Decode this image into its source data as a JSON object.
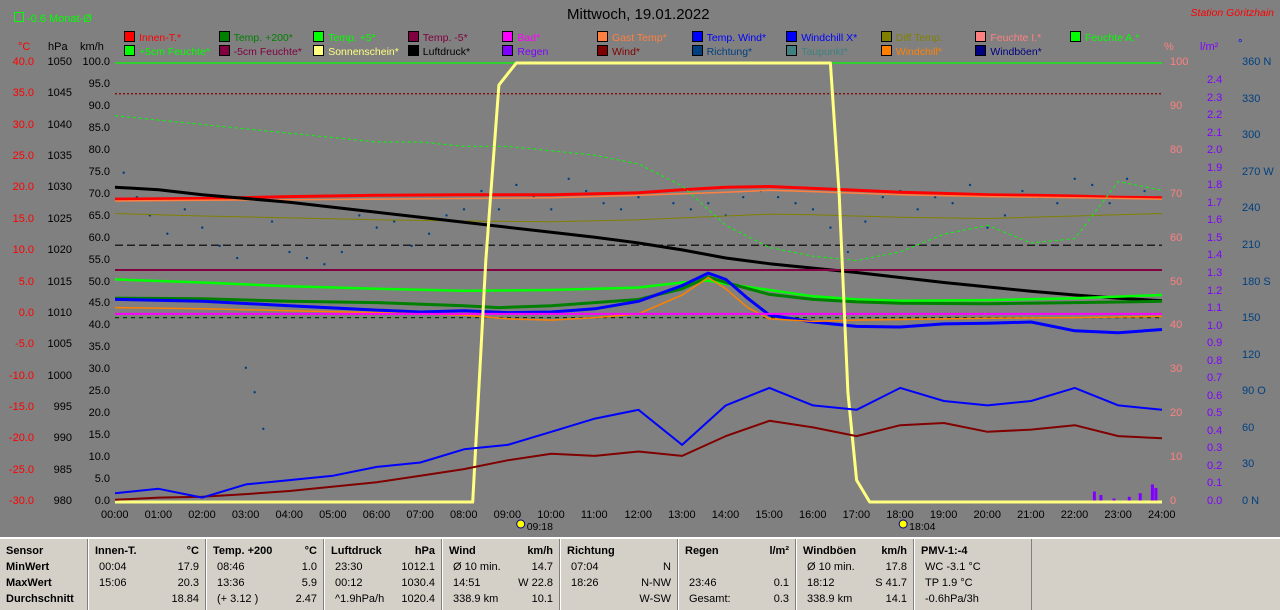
{
  "header": {
    "monat_badge": "-0.6 Monat-Ø",
    "title": "Mittwoch, 19.01.2022",
    "station": "Station Göritzhain"
  },
  "axes": {
    "left_temp": {
      "unit": "°C",
      "ticks": [
        "40.0",
        "35.0",
        "30.0",
        "25.0",
        "20.0",
        "15.0",
        "10.0",
        "5.0",
        "0.0",
        "-5.0",
        "-10.0",
        "-15.0",
        "-20.0",
        "-25.0",
        "-30.0"
      ]
    },
    "left_hpa": {
      "unit": "hPa",
      "ticks": [
        "1050",
        "1045",
        "1040",
        "1035",
        "1030",
        "1025",
        "1020",
        "1015",
        "1010",
        "1005",
        "1000",
        "995",
        "990",
        "985",
        "980"
      ]
    },
    "left_kmh": {
      "unit": "km/h",
      "ticks": [
        "100.0",
        "95.0",
        "90.0",
        "85.0",
        "80.0",
        "75.0",
        "70.0",
        "65.0",
        "60.0",
        "55.0",
        "50.0",
        "45.0",
        "40.0",
        "35.0",
        "30.0",
        "25.0",
        "20.0",
        "15.0",
        "10.0",
        "5.0",
        "0.0"
      ]
    },
    "right_pct": {
      "unit": "%",
      "ticks": [
        "100",
        "90",
        "80",
        "70",
        "60",
        "50",
        "40",
        "30",
        "20",
        "10",
        "0"
      ]
    },
    "right_rain": {
      "unit": "l/m²",
      "ticks": [
        "2.4",
        "2.3",
        "2.2",
        "2.1",
        "2.0",
        "1.9",
        "1.8",
        "1.7",
        "1.6",
        "1.5",
        "1.4",
        "1.3",
        "1.2",
        "1.1",
        "1.0",
        "0.9",
        "0.8",
        "0.7",
        "0.6",
        "0.5",
        "0.4",
        "0.3",
        "0.2",
        "0.1",
        "0.0"
      ]
    },
    "right_dir": {
      "unit": "°",
      "ticks": [
        "360 N",
        "330",
        "300",
        "270 W",
        "240",
        "210",
        "180 S",
        "150",
        "120",
        "90 O",
        "60",
        "30",
        "0 N"
      ]
    },
    "x_ticks": [
      "00:00",
      "01:00",
      "02:00",
      "03:00",
      "04:00",
      "05:00",
      "06:00",
      "07:00",
      "08:00",
      "09:00",
      "10:00",
      "11:00",
      "12:00",
      "13:00",
      "14:00",
      "15:00",
      "16:00",
      "17:00",
      "18:00",
      "19:00",
      "20:00",
      "21:00",
      "22:00",
      "23:00",
      "24:00"
    ],
    "sunrise": "09:18",
    "sunset": "18:04"
  },
  "legend": [
    {
      "label": "Innen-T.*",
      "color": "#ff0000"
    },
    {
      "label": "Temp. +200*",
      "color": "#008000"
    },
    {
      "label": "Temp. +5*",
      "color": "#00ff00"
    },
    {
      "label": "Temp. -5*",
      "color": "#800040"
    },
    {
      "label": "Bad*",
      "color": "#ff00ff"
    },
    {
      "label": "Gast Temp*",
      "color": "#ff8040"
    },
    {
      "label": "Temp. Wind*",
      "color": "#0000ff"
    },
    {
      "label": "Windchill X*",
      "color": "#0000ff"
    },
    {
      "label": "Diff Temp.",
      "color": "#808000"
    },
    {
      "label": "Feuchte I.*",
      "color": "#ff8080"
    },
    {
      "label": "Feuchte A.*",
      "color": "#00ff00"
    },
    {
      "label": "+5cm Feuchte*",
      "color": "#00ff00"
    },
    {
      "label": "-5cm Feuchte*",
      "color": "#800040"
    },
    {
      "label": "Sonnenschein*",
      "color": "#ffff80"
    },
    {
      "label": "Luftdruck*",
      "color": "#000000"
    },
    {
      "label": "Regen",
      "color": "#8000ff"
    },
    {
      "label": "Wind*",
      "color": "#800000"
    },
    {
      "label": "Richtung*",
      "color": "#004080"
    },
    {
      "label": "Taupunkt*",
      "color": "#408080"
    },
    {
      "label": "Windchill*",
      "color": "#ff8000"
    },
    {
      "label": "Windböen*",
      "color": "#000080"
    }
  ],
  "stats": {
    "row_labels": [
      "Sensor",
      "MinWert",
      "MaxWert",
      "Durchschnitt"
    ],
    "columns": [
      {
        "title": "Innen-T.",
        "unit": "°C",
        "rows": [
          [
            "00:04",
            "17.9"
          ],
          [
            "15:06",
            "20.3"
          ],
          [
            "",
            "18.84"
          ]
        ]
      },
      {
        "title": "Temp. +200",
        "unit": "°C",
        "rows": [
          [
            "08:46",
            "1.0"
          ],
          [
            "13:36",
            "5.9"
          ],
          [
            "(+ 3.12 )",
            "2.47"
          ]
        ]
      },
      {
        "title": "Luftdruck",
        "unit": "hPa",
        "rows": [
          [
            "23:30",
            "1012.1"
          ],
          [
            "00:12",
            "1030.4"
          ],
          [
            "^1.9hPa/h",
            "1020.4"
          ]
        ]
      },
      {
        "title": "Wind",
        "unit": "km/h",
        "rows": [
          [
            "Ø 10 min.",
            "14.7"
          ],
          [
            "14:51",
            "W 22.8"
          ],
          [
            "338.9 km",
            "10.1"
          ]
        ]
      },
      {
        "title": "Richtung",
        "unit": "",
        "rows": [
          [
            "07:04",
            "N"
          ],
          [
            "18:26",
            "N-NW"
          ],
          [
            "",
            "W-SW"
          ]
        ]
      },
      {
        "title": "Regen",
        "unit": "l/m²",
        "rows": [
          [
            "",
            ""
          ],
          [
            "23:46",
            "0.1"
          ],
          [
            "Gesamt:",
            "0.3"
          ]
        ]
      },
      {
        "title": "Windböen",
        "unit": "km/h",
        "rows": [
          [
            "Ø 10 min.",
            "17.8"
          ],
          [
            "18:12",
            "S 41.7"
          ],
          [
            "338.9 km",
            "14.1"
          ]
        ]
      },
      {
        "title": "PMV-1:-4",
        "unit": "",
        "rows": [
          [
            "WC -3.1 °C",
            ""
          ],
          [
            "TP 1.9 °C",
            ""
          ],
          [
            "-0.6hPa/3h",
            ""
          ]
        ]
      }
    ]
  },
  "chart_data": {
    "type": "line",
    "title": "Mittwoch, 19.01.2022",
    "x_unit": "hours",
    "xlim": [
      0,
      24
    ],
    "series": [
      {
        "name": "Innen-T.*",
        "axis": "°C",
        "color": "#ff0000",
        "width": 3,
        "x": [
          0,
          2,
          4,
          6,
          8,
          10,
          12,
          13,
          14,
          15,
          16,
          17,
          18,
          19,
          20,
          21,
          22,
          23,
          24
        ],
        "y": [
          18.3,
          18.4,
          18.7,
          18.9,
          19.0,
          19.0,
          19.3,
          19.8,
          20.2,
          20.3,
          20.0,
          19.7,
          19.4,
          19.2,
          19.0,
          18.9,
          18.8,
          18.6,
          18.5
        ]
      },
      {
        "name": "Gast Temp*",
        "axis": "°C",
        "color": "#ff8040",
        "width": 1.5,
        "x": [
          0,
          2,
          4,
          6,
          8,
          10,
          12,
          14,
          15,
          16,
          18,
          20,
          22,
          24
        ],
        "y": [
          18.0,
          18.1,
          18.2,
          18.3,
          18.4,
          18.5,
          18.9,
          19.4,
          19.7,
          19.5,
          19.0,
          18.7,
          18.5,
          18.3
        ]
      },
      {
        "name": "Diff Temp.",
        "axis": "°C",
        "color": "#808000",
        "width": 1,
        "x": [
          0,
          2,
          4,
          6,
          8,
          10,
          12,
          14,
          15,
          16,
          18,
          20,
          22,
          24
        ],
        "y": [
          16.0,
          15.6,
          15.3,
          15.0,
          14.8,
          14.7,
          15.0,
          15.6,
          15.9,
          15.8,
          15.4,
          15.2,
          15.6,
          16.0
        ]
      },
      {
        "name": "Luftdruck*",
        "axis": "hPa",
        "color": "#000000",
        "width": 3,
        "x": [
          0,
          1,
          2,
          3,
          4,
          5,
          6,
          7,
          8,
          9,
          10,
          11,
          12,
          13,
          14,
          15,
          16,
          17,
          18,
          19,
          20,
          21,
          22,
          23,
          24
        ],
        "y": [
          1030.2,
          1029.8,
          1029.0,
          1028.4,
          1027.8,
          1027.0,
          1026.2,
          1025.4,
          1024.6,
          1023.8,
          1023.0,
          1022.2,
          1021.3,
          1020.2,
          1018.9,
          1018.0,
          1017.3,
          1016.6,
          1015.8,
          1015.0,
          1014.3,
          1013.6,
          1013.0,
          1012.5,
          1012.1
        ]
      },
      {
        "name": "Temp. +5*",
        "axis": "°C",
        "color": "#00ff00",
        "width": 2.5,
        "x": [
          0,
          2,
          4,
          5,
          6,
          8,
          10,
          12,
          13,
          13.6,
          14,
          15,
          16,
          17,
          18,
          20,
          22,
          24
        ],
        "y": [
          5.5,
          5.0,
          4.4,
          4.2,
          4.0,
          3.7,
          3.8,
          4.2,
          5.0,
          5.3,
          4.8,
          3.8,
          2.8,
          2.3,
          2.1,
          2.2,
          2.5,
          3.0
        ]
      },
      {
        "name": "Temp. +200*",
        "axis": "°C",
        "color": "#008000",
        "width": 3,
        "x": [
          0,
          2,
          4,
          6,
          8,
          8.8,
          10,
          12,
          13,
          13.6,
          14,
          15,
          16,
          17,
          18,
          20,
          22,
          24
        ],
        "y": [
          2.5,
          2.4,
          2.0,
          1.8,
          1.3,
          1.0,
          1.3,
          2.3,
          4.0,
          5.9,
          5.0,
          3.1,
          2.3,
          1.9,
          1.7,
          1.6,
          1.8,
          2.0
        ]
      },
      {
        "name": "Temp. Wind*",
        "axis": "°C",
        "color": "#0000ff",
        "width": 3,
        "x": [
          0,
          2,
          4,
          6,
          7,
          8,
          9,
          10,
          11,
          12,
          13,
          13.6,
          14,
          14.5,
          15,
          16,
          17,
          18,
          19,
          20,
          21,
          22,
          23,
          24
        ],
        "y": [
          2.3,
          2.0,
          1.3,
          0.6,
          0.3,
          0.5,
          0.2,
          0.3,
          0.8,
          2.0,
          4.5,
          6.5,
          5.5,
          2.5,
          -0.2,
          -1.3,
          -2.0,
          -2.1,
          -1.6,
          -1.5,
          -1.3,
          -2.7,
          -3.0,
          -2.5
        ]
      },
      {
        "name": "Windchill*",
        "axis": "°C",
        "color": "#ff8000",
        "width": 1.5,
        "x": [
          0,
          2,
          4,
          6,
          8,
          9,
          10,
          11,
          12,
          13,
          13.6,
          14,
          14.5,
          15,
          16,
          17,
          18,
          20,
          22,
          24
        ],
        "y": [
          1.0,
          0.8,
          0.5,
          0.2,
          -0.2,
          -0.8,
          -1.0,
          -0.6,
          0.0,
          3.0,
          5.8,
          4.0,
          1.0,
          -0.8,
          -1.2,
          -1.0,
          -0.9,
          -0.7,
          -0.6,
          -0.4
        ]
      },
      {
        "name": "Temp. -5*",
        "axis": "°C",
        "color": "#800040",
        "width": 2,
        "x": [
          0,
          24
        ],
        "y": [
          7.0,
          7.0
        ]
      },
      {
        "name": "Bad*",
        "axis": "°C",
        "color": "#ff00ff",
        "width": 2,
        "x": [
          0,
          24
        ],
        "y": [
          0.0,
          0.0
        ]
      },
      {
        "name": "Feuchte A.*",
        "axis": "%",
        "color": "#00ff00",
        "width": 1,
        "dash": "3,3",
        "x": [
          0,
          1,
          2,
          3,
          4,
          5,
          6,
          7,
          8,
          9,
          10,
          11,
          12,
          13,
          14,
          15,
          16,
          17,
          18,
          19,
          20,
          21,
          22,
          23,
          24
        ],
        "y": [
          88,
          87,
          86,
          85,
          84,
          83,
          82,
          82,
          81,
          81,
          80,
          79,
          77,
          72,
          63,
          58,
          56,
          55,
          57,
          61,
          63,
          59,
          60,
          73,
          71
        ]
      },
      {
        "name": "Sonnenschein*",
        "axis": "%",
        "color": "#ffff80",
        "width": 3,
        "x": [
          0,
          8.2,
          8.5,
          8.8,
          9.2,
          16.4,
          16.6,
          16.8,
          17,
          17.3,
          24
        ],
        "y": [
          0,
          0,
          55,
          95,
          100,
          100,
          70,
          25,
          5,
          0,
          0
        ]
      },
      {
        "name": "Wind*",
        "axis": "km/h",
        "color": "#800000",
        "width": 2,
        "x": [
          0,
          1,
          2,
          3,
          4,
          5,
          6,
          7,
          8,
          9,
          10,
          11,
          12,
          13,
          14,
          15,
          16,
          17,
          18,
          19,
          20,
          21,
          22,
          23,
          24
        ],
        "y": [
          0.5,
          1.0,
          1.2,
          1.8,
          2.5,
          3.5,
          4.5,
          6.0,
          7.5,
          9.5,
          11.0,
          10.5,
          11.5,
          10.5,
          15.0,
          18.5,
          17.0,
          15.0,
          17.5,
          18.0,
          16.0,
          16.5,
          17.5,
          15.0,
          14.5
        ]
      },
      {
        "name": "Windböen*",
        "axis": "km/h",
        "color": "#0000ff",
        "width": 2,
        "x": [
          0,
          1,
          2,
          3,
          4,
          5,
          6,
          7,
          8,
          9,
          10,
          11,
          12,
          13,
          14,
          15,
          16,
          17,
          18,
          19,
          20,
          21,
          22,
          23,
          24
        ],
        "y": [
          2,
          3,
          1,
          4,
          5,
          6,
          8,
          9,
          12,
          13,
          16,
          19,
          21,
          13,
          22,
          26,
          22,
          21,
          26,
          23,
          22,
          23,
          26,
          22,
          21
        ]
      }
    ],
    "richtung_scatter": {
      "name": "Richtung*",
      "axis": "°",
      "color": "#004080",
      "x": [
        0.2,
        0.5,
        0.8,
        1.2,
        1.6,
        2.0,
        2.4,
        2.8,
        3.0,
        3.2,
        3.4,
        3.6,
        4.0,
        4.4,
        4.8,
        5.2,
        5.6,
        6.0,
        6.4,
        6.8,
        7.2,
        7.6,
        8.0,
        8.4,
        8.8,
        9.2,
        9.6,
        10.0,
        10.4,
        10.8,
        11.2,
        11.6,
        12.0,
        12.4,
        12.8,
        13.2,
        13.6,
        14.0,
        14.4,
        14.8,
        15.2,
        15.6,
        16.0,
        16.4,
        16.8,
        17.2,
        17.6,
        18.0,
        18.4,
        18.8,
        19.2,
        19.6,
        20.0,
        20.4,
        20.8,
        21.2,
        21.6,
        22.0,
        22.4,
        22.8,
        23.2,
        23.6,
        23.9
      ],
      "y": [
        270,
        250,
        235,
        220,
        240,
        225,
        210,
        200,
        110,
        90,
        60,
        230,
        205,
        200,
        195,
        205,
        235,
        225,
        230,
        210,
        220,
        235,
        240,
        255,
        240,
        260,
        250,
        240,
        265,
        255,
        245,
        240,
        250,
        255,
        245,
        240,
        245,
        235,
        250,
        255,
        250,
        245,
        240,
        225,
        205,
        230,
        250,
        255,
        240,
        250,
        245,
        260,
        225,
        235,
        255,
        250,
        245,
        265,
        260,
        245,
        265,
        255,
        250
      ]
    },
    "regen_bars": {
      "name": "Regen",
      "axis": "l/m²",
      "color": "#8000ff",
      "x": [
        22.45,
        22.6,
        22.9,
        23.25,
        23.5,
        23.78,
        23.86
      ],
      "y": [
        0.06,
        0.04,
        0.02,
        0.03,
        0.05,
        0.1,
        0.08
      ]
    },
    "reference_lines": [
      {
        "axis": "%",
        "y": 93,
        "color": "#800000",
        "dash": "2,2"
      },
      {
        "axis": "%",
        "y": 100,
        "color": "#00ff00",
        "dash": ""
      },
      {
        "axis": "%",
        "y": 58.5,
        "color": "#000000",
        "dash": "8,4"
      },
      {
        "axis": "%",
        "y": 42,
        "color": "#004000",
        "dash": "4,4"
      }
    ]
  }
}
